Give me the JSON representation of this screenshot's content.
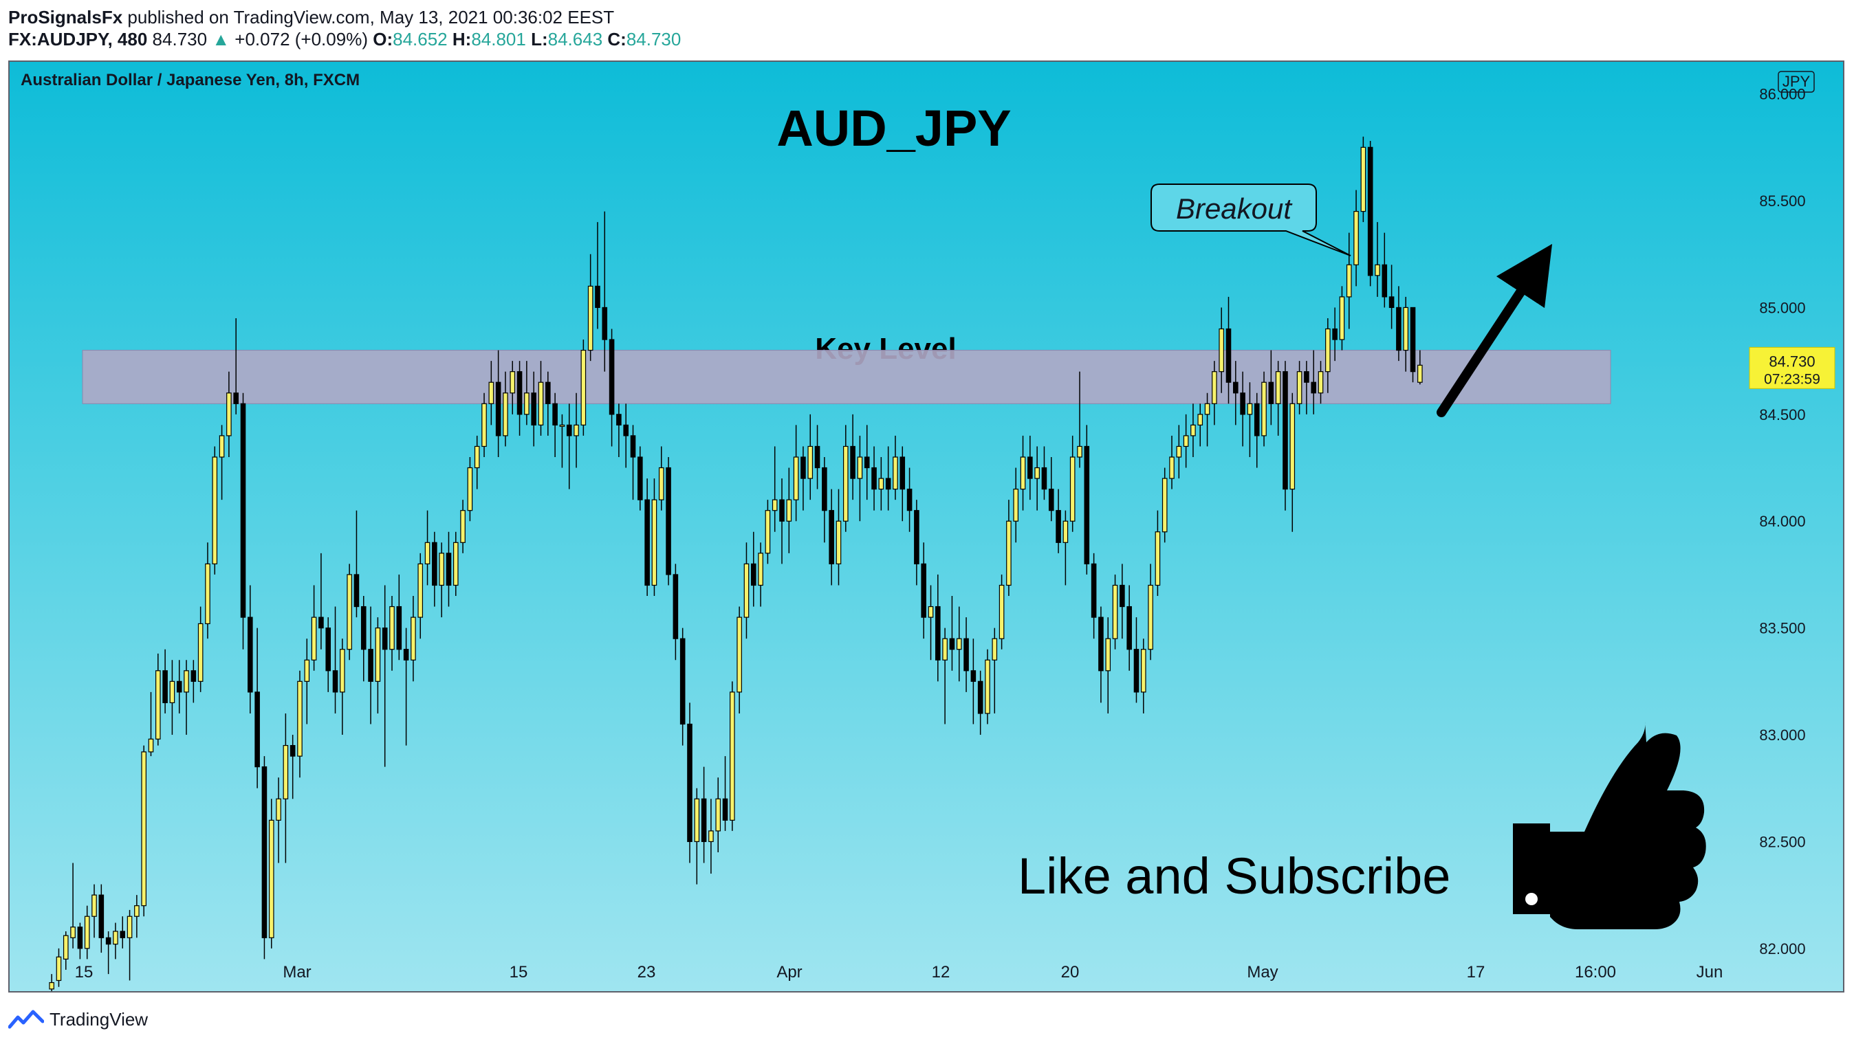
{
  "header": {
    "author": "ProSignalsFx",
    "published_text": "published on TradingView.com, May 13, 2021 00:36:02 EEST",
    "symbol": "FX:AUDJPY, 480",
    "last": "84.730",
    "change": "+0.072 (+0.09%)",
    "o_label": "O:",
    "o_value": "84.652",
    "h_label": "H:",
    "h_value": "84.801",
    "l_label": "L:",
    "l_value": "84.643",
    "c_label": "C:",
    "c_value": "84.730"
  },
  "chart_info": {
    "instrument": "Australian Dollar / Japanese Yen, 8h, FXCM",
    "currency_badge": "JPY",
    "big_title": "AUD_JPY",
    "key_level_label": "Key Level",
    "breakout_label": "Breakout",
    "cta_text": "Like and Subscribe",
    "countdown": "07:23:59"
  },
  "colors": {
    "candle_fill": "#f7f26b",
    "candle_stroke": "#000000",
    "zone_fill": "#b0a9c6",
    "price_tag": "#f7f236",
    "tradingview_blue": "#2962ff"
  },
  "footer": {
    "brand": "TradingView"
  },
  "chart_data": {
    "type": "candlestick",
    "title": "AUD_JPY",
    "y_ticks": [
      "86.000",
      "85.500",
      "85.000",
      "84.500",
      "84.000",
      "83.500",
      "83.000",
      "82.500",
      "82.000"
    ],
    "ylim": [
      81.8,
      86.15
    ],
    "x_tick_labels": [
      "15",
      "Mar",
      "15",
      "23",
      "Apr",
      "12",
      "20",
      "May",
      "17",
      "16:00",
      "Jun"
    ],
    "current_price": "84.730",
    "key_level_zone": [
      84.55,
      84.8
    ],
    "arrow_direction": "up-right",
    "candles": [
      [
        81.81,
        81.88,
        81.78,
        81.84
      ],
      [
        81.85,
        82.0,
        81.82,
        81.96
      ],
      [
        81.95,
        82.08,
        81.9,
        82.06
      ],
      [
        82.05,
        82.4,
        82.0,
        82.1
      ],
      [
        82.1,
        82.12,
        81.95,
        82.0
      ],
      [
        82.0,
        82.2,
        81.95,
        82.15
      ],
      [
        82.15,
        82.3,
        82.05,
        82.25
      ],
      [
        82.25,
        82.3,
        81.98,
        82.05
      ],
      [
        82.05,
        82.08,
        81.88,
        82.02
      ],
      [
        82.02,
        82.12,
        81.95,
        82.08
      ],
      [
        82.08,
        82.15,
        82.0,
        82.05
      ],
      [
        82.05,
        82.18,
        81.85,
        82.15
      ],
      [
        82.15,
        82.25,
        82.05,
        82.2
      ],
      [
        82.2,
        82.95,
        82.15,
        82.92
      ],
      [
        82.92,
        83.2,
        82.9,
        82.98
      ],
      [
        82.98,
        83.38,
        82.95,
        83.3
      ],
      [
        83.3,
        83.4,
        83.1,
        83.15
      ],
      [
        83.15,
        83.35,
        83.0,
        83.25
      ],
      [
        83.25,
        83.35,
        83.1,
        83.2
      ],
      [
        83.2,
        83.35,
        83.0,
        83.3
      ],
      [
        83.3,
        83.35,
        83.15,
        83.25
      ],
      [
        83.25,
        83.6,
        83.2,
        83.52
      ],
      [
        83.52,
        83.9,
        83.45,
        83.8
      ],
      [
        83.8,
        84.35,
        83.75,
        84.3
      ],
      [
        84.3,
        84.45,
        84.1,
        84.4
      ],
      [
        84.4,
        84.7,
        84.3,
        84.6
      ],
      [
        84.6,
        84.95,
        84.5,
        84.55
      ],
      [
        84.55,
        84.6,
        83.4,
        83.55
      ],
      [
        83.55,
        83.7,
        83.1,
        83.2
      ],
      [
        83.2,
        83.5,
        82.75,
        82.85
      ],
      [
        82.85,
        82.9,
        81.95,
        82.05
      ],
      [
        82.05,
        82.7,
        82.0,
        82.6
      ],
      [
        82.6,
        82.8,
        82.4,
        82.7
      ],
      [
        82.7,
        83.1,
        82.4,
        82.95
      ],
      [
        82.95,
        83.0,
        82.7,
        82.9
      ],
      [
        82.9,
        83.3,
        82.8,
        83.25
      ],
      [
        83.25,
        83.45,
        83.05,
        83.35
      ],
      [
        83.35,
        83.7,
        83.3,
        83.55
      ],
      [
        83.55,
        83.85,
        83.4,
        83.5
      ],
      [
        83.5,
        83.55,
        83.2,
        83.3
      ],
      [
        83.3,
        83.6,
        83.1,
        83.2
      ],
      [
        83.2,
        83.45,
        83.0,
        83.4
      ],
      [
        83.4,
        83.8,
        83.35,
        83.75
      ],
      [
        83.75,
        84.05,
        83.55,
        83.6
      ],
      [
        83.6,
        83.65,
        83.25,
        83.4
      ],
      [
        83.4,
        83.6,
        83.05,
        83.25
      ],
      [
        83.25,
        83.55,
        83.1,
        83.5
      ],
      [
        83.5,
        83.7,
        82.85,
        83.4
      ],
      [
        83.4,
        83.65,
        83.3,
        83.6
      ],
      [
        83.6,
        83.75,
        83.35,
        83.4
      ],
      [
        83.4,
        83.5,
        82.95,
        83.35
      ],
      [
        83.35,
        83.65,
        83.25,
        83.55
      ],
      [
        83.55,
        83.85,
        83.45,
        83.8
      ],
      [
        83.8,
        84.05,
        83.7,
        83.9
      ],
      [
        83.9,
        83.95,
        83.6,
        83.7
      ],
      [
        83.7,
        83.9,
        83.55,
        83.85
      ],
      [
        83.85,
        83.95,
        83.6,
        83.7
      ],
      [
        83.7,
        83.95,
        83.65,
        83.9
      ],
      [
        83.9,
        84.1,
        83.85,
        84.05
      ],
      [
        84.05,
        84.3,
        84.0,
        84.25
      ],
      [
        84.25,
        84.4,
        84.15,
        84.35
      ],
      [
        84.35,
        84.6,
        84.3,
        84.55
      ],
      [
        84.55,
        84.75,
        84.45,
        84.65
      ],
      [
        84.65,
        84.8,
        84.3,
        84.4
      ],
      [
        84.4,
        84.7,
        84.35,
        84.6
      ],
      [
        84.6,
        84.75,
        84.5,
        84.7
      ],
      [
        84.7,
        84.75,
        84.4,
        84.5
      ],
      [
        84.5,
        84.75,
        84.45,
        84.6
      ],
      [
        84.6,
        84.7,
        84.35,
        84.45
      ],
      [
        84.45,
        84.75,
        84.4,
        84.65
      ],
      [
        84.65,
        84.7,
        84.4,
        84.55
      ],
      [
        84.55,
        84.6,
        84.3,
        84.45
      ],
      [
        84.45,
        84.5,
        84.25,
        84.45
      ],
      [
        84.45,
        84.55,
        84.15,
        84.4
      ],
      [
        84.4,
        84.6,
        84.25,
        84.45
      ],
      [
        84.45,
        84.85,
        84.4,
        84.8
      ],
      [
        84.8,
        85.25,
        84.75,
        85.1
      ],
      [
        85.1,
        85.4,
        84.9,
        85.0
      ],
      [
        85.0,
        85.45,
        84.7,
        84.85
      ],
      [
        84.85,
        84.9,
        84.35,
        84.5
      ],
      [
        84.5,
        84.55,
        84.3,
        84.45
      ],
      [
        84.45,
        84.55,
        84.25,
        84.4
      ],
      [
        84.4,
        84.45,
        84.1,
        84.3
      ],
      [
        84.3,
        84.35,
        84.05,
        84.1
      ],
      [
        84.1,
        84.2,
        83.65,
        83.7
      ],
      [
        83.7,
        84.2,
        83.65,
        84.1
      ],
      [
        84.1,
        84.35,
        84.05,
        84.25
      ],
      [
        84.25,
        84.3,
        83.7,
        83.75
      ],
      [
        83.75,
        83.8,
        83.35,
        83.45
      ],
      [
        83.45,
        83.5,
        82.95,
        83.05
      ],
      [
        83.05,
        83.15,
        82.4,
        82.5
      ],
      [
        82.5,
        82.75,
        82.3,
        82.7
      ],
      [
        82.7,
        82.85,
        82.4,
        82.5
      ],
      [
        82.5,
        82.7,
        82.35,
        82.55
      ],
      [
        82.55,
        82.8,
        82.45,
        82.7
      ],
      [
        82.7,
        82.9,
        82.55,
        82.6
      ],
      [
        82.6,
        83.25,
        82.55,
        83.2
      ],
      [
        83.2,
        83.6,
        83.1,
        83.55
      ],
      [
        83.55,
        83.9,
        83.45,
        83.8
      ],
      [
        83.8,
        83.95,
        83.6,
        83.7
      ],
      [
        83.7,
        83.9,
        83.6,
        83.85
      ],
      [
        83.85,
        84.1,
        83.8,
        84.05
      ],
      [
        84.05,
        84.35,
        83.95,
        84.1
      ],
      [
        84.1,
        84.2,
        83.8,
        84.0
      ],
      [
        84.0,
        84.25,
        83.85,
        84.1
      ],
      [
        84.1,
        84.45,
        84.0,
        84.3
      ],
      [
        84.3,
        84.35,
        84.05,
        84.2
      ],
      [
        84.2,
        84.5,
        84.1,
        84.35
      ],
      [
        84.35,
        84.45,
        84.15,
        84.25
      ],
      [
        84.25,
        84.3,
        83.9,
        84.05
      ],
      [
        84.05,
        84.15,
        83.7,
        83.8
      ],
      [
        83.8,
        84.15,
        83.7,
        84.0
      ],
      [
        84.0,
        84.45,
        83.95,
        84.35
      ],
      [
        84.35,
        84.5,
        84.1,
        84.2
      ],
      [
        84.2,
        84.4,
        84.0,
        84.3
      ],
      [
        84.3,
        84.45,
        84.1,
        84.25
      ],
      [
        84.25,
        84.35,
        84.05,
        84.15
      ],
      [
        84.15,
        84.3,
        84.05,
        84.2
      ],
      [
        84.2,
        84.35,
        84.05,
        84.15
      ],
      [
        84.15,
        84.4,
        84.1,
        84.3
      ],
      [
        84.3,
        84.35,
        84.0,
        84.15
      ],
      [
        84.15,
        84.25,
        83.95,
        84.05
      ],
      [
        84.05,
        84.1,
        83.7,
        83.8
      ],
      [
        83.8,
        83.9,
        83.45,
        83.55
      ],
      [
        83.55,
        83.7,
        83.35,
        83.6
      ],
      [
        83.6,
        83.75,
        83.25,
        83.35
      ],
      [
        83.35,
        83.5,
        83.05,
        83.45
      ],
      [
        83.45,
        83.65,
        83.3,
        83.4
      ],
      [
        83.4,
        83.6,
        83.25,
        83.45
      ],
      [
        83.45,
        83.55,
        83.2,
        83.3
      ],
      [
        83.3,
        83.45,
        83.05,
        83.25
      ],
      [
        83.25,
        83.3,
        83.0,
        83.1
      ],
      [
        83.1,
        83.4,
        83.05,
        83.35
      ],
      [
        83.35,
        83.5,
        83.1,
        83.45
      ],
      [
        83.45,
        83.75,
        83.4,
        83.7
      ],
      [
        83.7,
        84.1,
        83.65,
        84.0
      ],
      [
        84.0,
        84.25,
        83.9,
        84.15
      ],
      [
        84.15,
        84.4,
        84.05,
        84.3
      ],
      [
        84.3,
        84.4,
        84.1,
        84.2
      ],
      [
        84.2,
        84.35,
        84.05,
        84.25
      ],
      [
        84.25,
        84.35,
        84.1,
        84.15
      ],
      [
        84.15,
        84.3,
        84.0,
        84.05
      ],
      [
        84.05,
        84.15,
        83.85,
        83.9
      ],
      [
        83.9,
        84.05,
        83.7,
        84.0
      ],
      [
        84.0,
        84.4,
        83.95,
        84.3
      ],
      [
        84.3,
        84.7,
        84.25,
        84.35
      ],
      [
        84.35,
        84.45,
        83.75,
        83.8
      ],
      [
        83.8,
        83.85,
        83.45,
        83.55
      ],
      [
        83.55,
        83.6,
        83.15,
        83.3
      ],
      [
        83.3,
        83.55,
        83.1,
        83.45
      ],
      [
        83.45,
        83.75,
        83.4,
        83.7
      ],
      [
        83.7,
        83.8,
        83.45,
        83.6
      ],
      [
        83.6,
        83.7,
        83.3,
        83.4
      ],
      [
        83.4,
        83.55,
        83.15,
        83.2
      ],
      [
        83.2,
        83.45,
        83.1,
        83.4
      ],
      [
        83.4,
        83.8,
        83.35,
        83.7
      ],
      [
        83.7,
        84.05,
        83.65,
        83.95
      ],
      [
        83.95,
        84.25,
        83.9,
        84.2
      ],
      [
        84.2,
        84.4,
        84.15,
        84.3
      ],
      [
        84.3,
        84.45,
        84.2,
        84.35
      ],
      [
        84.35,
        84.5,
        84.25,
        84.4
      ],
      [
        84.4,
        84.55,
        84.3,
        84.45
      ],
      [
        84.45,
        84.55,
        84.35,
        84.5
      ],
      [
        84.5,
        84.6,
        84.35,
        84.55
      ],
      [
        84.55,
        84.75,
        84.45,
        84.7
      ],
      [
        84.7,
        85.0,
        84.6,
        84.9
      ],
      [
        84.9,
        85.05,
        84.55,
        84.65
      ],
      [
        84.65,
        84.75,
        84.45,
        84.6
      ],
      [
        84.6,
        84.7,
        84.35,
        84.5
      ],
      [
        84.5,
        84.65,
        84.3,
        84.55
      ],
      [
        84.55,
        84.6,
        84.25,
        84.4
      ],
      [
        84.4,
        84.7,
        84.35,
        84.65
      ],
      [
        84.65,
        84.8,
        84.45,
        84.55
      ],
      [
        84.55,
        84.75,
        84.4,
        84.7
      ],
      [
        84.7,
        84.75,
        84.05,
        84.15
      ],
      [
        84.15,
        84.6,
        83.95,
        84.55
      ],
      [
        84.55,
        84.75,
        84.5,
        84.7
      ],
      [
        84.7,
        84.75,
        84.5,
        84.65
      ],
      [
        84.65,
        84.8,
        84.5,
        84.6
      ],
      [
        84.6,
        84.75,
        84.55,
        84.7
      ],
      [
        84.7,
        84.95,
        84.6,
        84.9
      ],
      [
        84.9,
        85.0,
        84.75,
        84.85
      ],
      [
        84.85,
        85.1,
        84.8,
        85.05
      ],
      [
        85.05,
        85.35,
        84.9,
        85.2
      ],
      [
        85.2,
        85.55,
        85.1,
        85.45
      ],
      [
        85.45,
        85.8,
        85.4,
        85.75
      ],
      [
        85.75,
        85.78,
        85.1,
        85.15
      ],
      [
        85.15,
        85.4,
        85.05,
        85.2
      ],
      [
        85.2,
        85.35,
        85.0,
        85.05
      ],
      [
        85.05,
        85.2,
        84.9,
        85.0
      ],
      [
        85.0,
        85.1,
        84.75,
        84.8
      ],
      [
        84.8,
        85.05,
        84.7,
        85.0
      ],
      [
        85.0,
        85.0,
        84.65,
        84.7
      ],
      [
        84.65,
        84.8,
        84.64,
        84.73
      ]
    ]
  }
}
